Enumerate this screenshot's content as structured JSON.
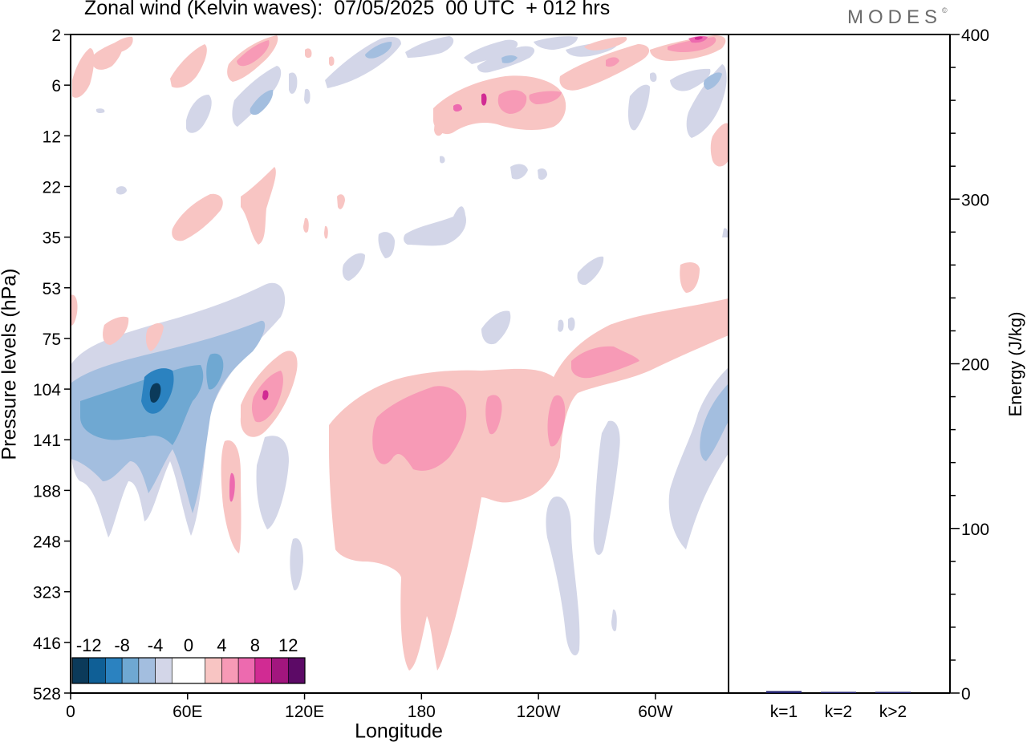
{
  "header": {
    "title": "Zonal wind (Kelvin waves):  07/05/2025  00 UTC  + 012 hrs",
    "brand": "MODES",
    "brand_mark": "©"
  },
  "chart_data": [
    {
      "type": "heatmap",
      "title": "Zonal wind (Kelvin waves):  07/05/2025  00 UTC  + 012 hrs",
      "xlabel": "Longitude",
      "ylabel": "Pressure levels (hPa)",
      "x_ticks": [
        "0",
        "60E",
        "120E",
        "180",
        "120W",
        "60W"
      ],
      "x_tick_values": [
        0,
        60,
        120,
        180,
        240,
        300
      ],
      "x_range": [
        0,
        337.5
      ],
      "y_ticks": [
        "2",
        "6",
        "12",
        "22",
        "35",
        "53",
        "75",
        "104",
        "141",
        "188",
        "248",
        "323",
        "416",
        "528"
      ],
      "y_scale": "categorical model levels (top = 2 hPa, bottom = 528 hPa)",
      "colorbar": {
        "labels": [
          "-12",
          "-8",
          "-4",
          "0",
          "4",
          "8",
          "12"
        ],
        "bounds": [
          -14,
          -12,
          -10,
          -8,
          -6,
          -4,
          -2,
          2,
          4,
          6,
          8,
          10,
          12,
          14
        ],
        "colors": [
          "#0b3a5a",
          "#0f5f96",
          "#2b82c0",
          "#6fa8d2",
          "#a3bedf",
          "#d3d6e8",
          "#ffffff",
          "#f8c5c3",
          "#f79ab6",
          "#ed6aaf",
          "#d12b93",
          "#a2167e",
          "#5c0a66"
        ],
        "placement": "bottom-left"
      },
      "regions": [
        {
          "name": "negative anomaly",
          "level": "-4",
          "lon_range": [
            0,
            90
          ],
          "pressure_range": [
            "75",
            "248"
          ]
        },
        {
          "name": "negative core",
          "level": "-12",
          "lon_range": [
            36,
            50
          ],
          "pressure_range": [
            "104",
            "141"
          ]
        },
        {
          "name": "positive anomaly",
          "level": "4",
          "lon_range": [
            140,
            240
          ],
          "pressure_range": [
            "104",
            "416"
          ]
        },
        {
          "name": "positive core",
          "level": "8",
          "lon_range": [
            160,
            205
          ],
          "pressure_range": [
            "104",
            "141"
          ]
        },
        {
          "name": "positive band",
          "level": "8",
          "lon_range": [
            255,
            290
          ],
          "pressure_range": [
            "75",
            "104"
          ]
        },
        {
          "name": "negative anomaly",
          "level": "-4",
          "lon_range": [
            310,
            337.5
          ],
          "pressure_range": [
            "104",
            "248"
          ]
        },
        {
          "name": "positive band",
          "level": "8",
          "lon_range": [
            320,
            337.5
          ],
          "pressure_range": [
            "2",
            "2"
          ]
        }
      ]
    },
    {
      "type": "bar",
      "ylabel": "Energy (J/kg)",
      "ylim": [
        0,
        400
      ],
      "y_ticks": [
        "0",
        "100",
        "200",
        "300",
        "400"
      ],
      "categories": [
        "k=1",
        "k=2",
        "k>2"
      ],
      "values": [
        1.2,
        0.3,
        0.6
      ],
      "bar_color": "#1f1f6b"
    }
  ]
}
